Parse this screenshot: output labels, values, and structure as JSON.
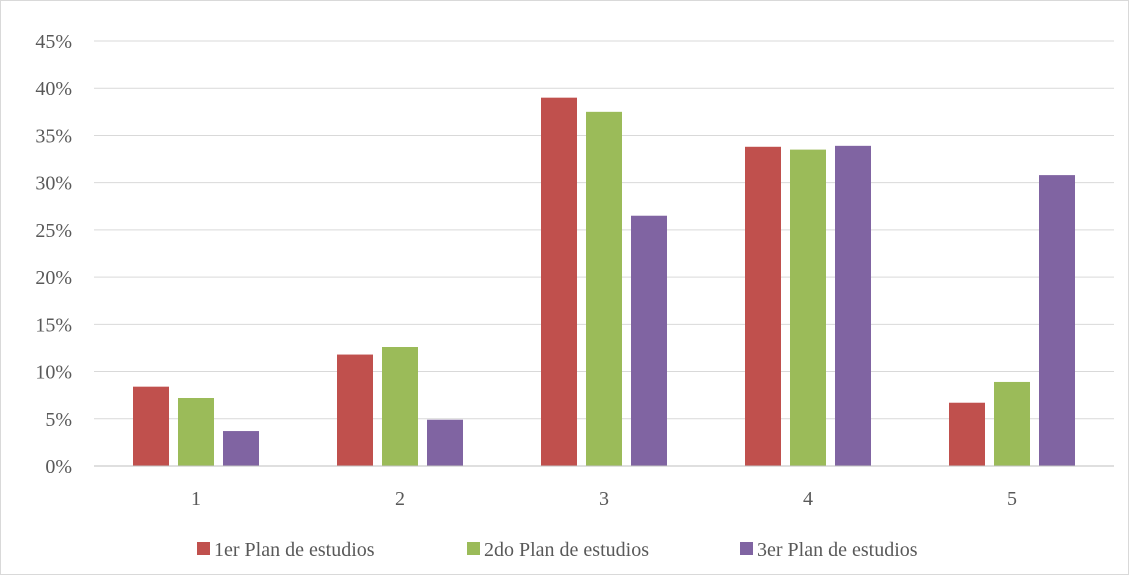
{
  "chart_data": {
    "type": "bar",
    "categories": [
      "1",
      "2",
      "3",
      "4",
      "5"
    ],
    "series": [
      {
        "name": "1er Plan de estudios",
        "color": "#C0504D",
        "values": [
          8.4,
          11.8,
          39.0,
          33.8,
          6.7
        ]
      },
      {
        "name": "2do Plan de estudios",
        "color": "#9BBB59",
        "values": [
          7.2,
          12.6,
          37.5,
          33.5,
          8.9
        ]
      },
      {
        "name": "3er Plan de estudios",
        "color": "#8064A2",
        "values": [
          3.7,
          4.9,
          26.5,
          33.9,
          30.8
        ]
      }
    ],
    "ylim": [
      0,
      45
    ],
    "yticks": [
      "0%",
      "5%",
      "10%",
      "15%",
      "20%",
      "25%",
      "30%",
      "35%",
      "40%",
      "45%"
    ],
    "grid": true,
    "legend_position": "bottom"
  }
}
